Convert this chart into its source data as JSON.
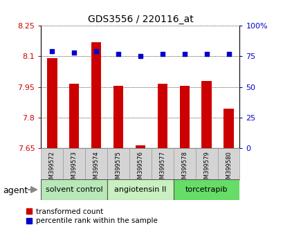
{
  "title": "GDS3556 / 220116_at",
  "samples": [
    "GSM399572",
    "GSM399573",
    "GSM399574",
    "GSM399575",
    "GSM399576",
    "GSM399577",
    "GSM399578",
    "GSM399579",
    "GSM399580"
  ],
  "red_values": [
    8.09,
    7.965,
    8.17,
    7.955,
    7.665,
    7.965,
    7.955,
    7.98,
    7.845
  ],
  "blue_values": [
    79,
    78,
    79,
    77,
    75,
    77,
    77,
    77,
    77
  ],
  "ylim_left": [
    7.65,
    8.25
  ],
  "ylim_right": [
    0,
    100
  ],
  "yticks_left": [
    7.65,
    7.8,
    7.95,
    8.1,
    8.25
  ],
  "yticks_right": [
    0,
    25,
    50,
    75,
    100
  ],
  "ytick_labels_left": [
    "7.65",
    "7.8",
    "7.95",
    "8.1",
    "8.25"
  ],
  "ytick_labels_right": [
    "0",
    "25",
    "50",
    "75",
    "100%"
  ],
  "groups": [
    {
      "label": "solvent control",
      "samples": [
        0,
        1,
        2
      ],
      "color": "#b8e8b8"
    },
    {
      "label": "angiotensin II",
      "samples": [
        3,
        4,
        5
      ],
      "color": "#c8f0c0"
    },
    {
      "label": "torcetrapib",
      "samples": [
        6,
        7,
        8
      ],
      "color": "#66dd66"
    }
  ],
  "bar_color": "#cc0000",
  "dot_color": "#0000cc",
  "bar_bottom": 7.65,
  "bar_width": 0.45,
  "group_label": "agent",
  "legend_red": "transformed count",
  "legend_blue": "percentile rank within the sample",
  "tick_label_color_left": "#cc0000",
  "tick_label_color_right": "#0000cc"
}
